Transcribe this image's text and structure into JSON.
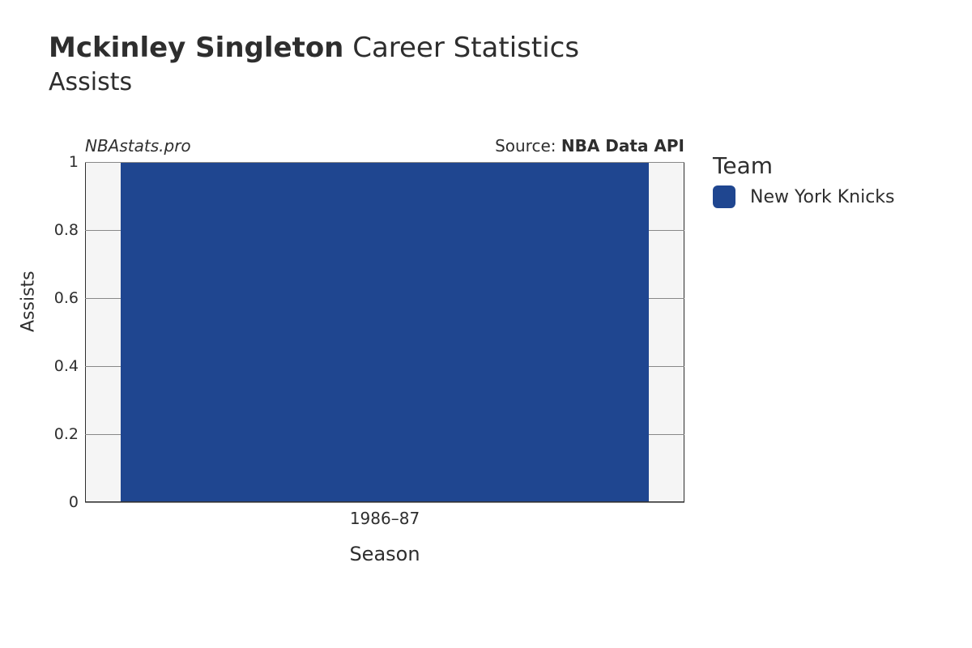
{
  "title": {
    "name": "Mckinley Singleton",
    "suffix": " Career Statistics",
    "subtitle": "Assists"
  },
  "attrib": {
    "left": "NBAstats.pro",
    "right_prefix": "Source: ",
    "right_source": "NBA Data API"
  },
  "chart": {
    "type": "bar",
    "background_color": "#f5f5f5",
    "grid_color": "#888888",
    "spine_color": "#2e2e2e",
    "bar_color": "#1f4690",
    "bar_width_rel": 0.88,
    "ylim": [
      0,
      1
    ],
    "yticks": [
      0,
      0.2,
      0.4,
      0.6,
      0.8,
      1
    ],
    "ytick_labels": [
      "0",
      "0.2",
      "0.4",
      "0.6",
      "0.8",
      "1"
    ],
    "y_label": "Assists",
    "x_label": "Season",
    "categories": [
      "1986–87"
    ],
    "values": [
      1
    ]
  },
  "legend": {
    "title": "Team",
    "items": [
      {
        "label": "New York Knicks",
        "color": "#1f4690"
      }
    ]
  }
}
